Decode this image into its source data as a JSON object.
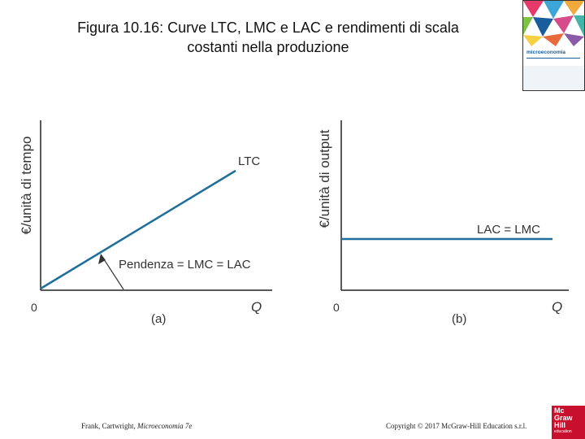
{
  "title_line1": "Figura 10.16: Curve LTC, LMC e LAC e rendimenti di scala",
  "title_line2": "costanti nella produzione",
  "book_cover": {
    "title": "microeconomia"
  },
  "panel_a": {
    "ylabel": "€/unità di tempo",
    "origin": "0",
    "xlabel": "Q",
    "curve_label": "LTC",
    "annotation": "Pendenza = LMC = LAC",
    "panel_label": "(a)"
  },
  "panel_b": {
    "ylabel": "€/unità di output",
    "origin": "0",
    "xlabel": "Q",
    "curve_label": "LAC = LMC",
    "panel_label": "(b)"
  },
  "footer": {
    "left_authors": "Frank, Cartwright, ",
    "left_book": "Microeconomia 7e",
    "right": "Copyright © 2017 McGraw-Hill Education s.r.l."
  },
  "logo": {
    "line1": "Mc",
    "line2": "Graw",
    "line3": "Hill",
    "line4": "education"
  },
  "colors": {
    "curve": "#1f6f9a",
    "axis": "#222222",
    "label": "#333333"
  }
}
